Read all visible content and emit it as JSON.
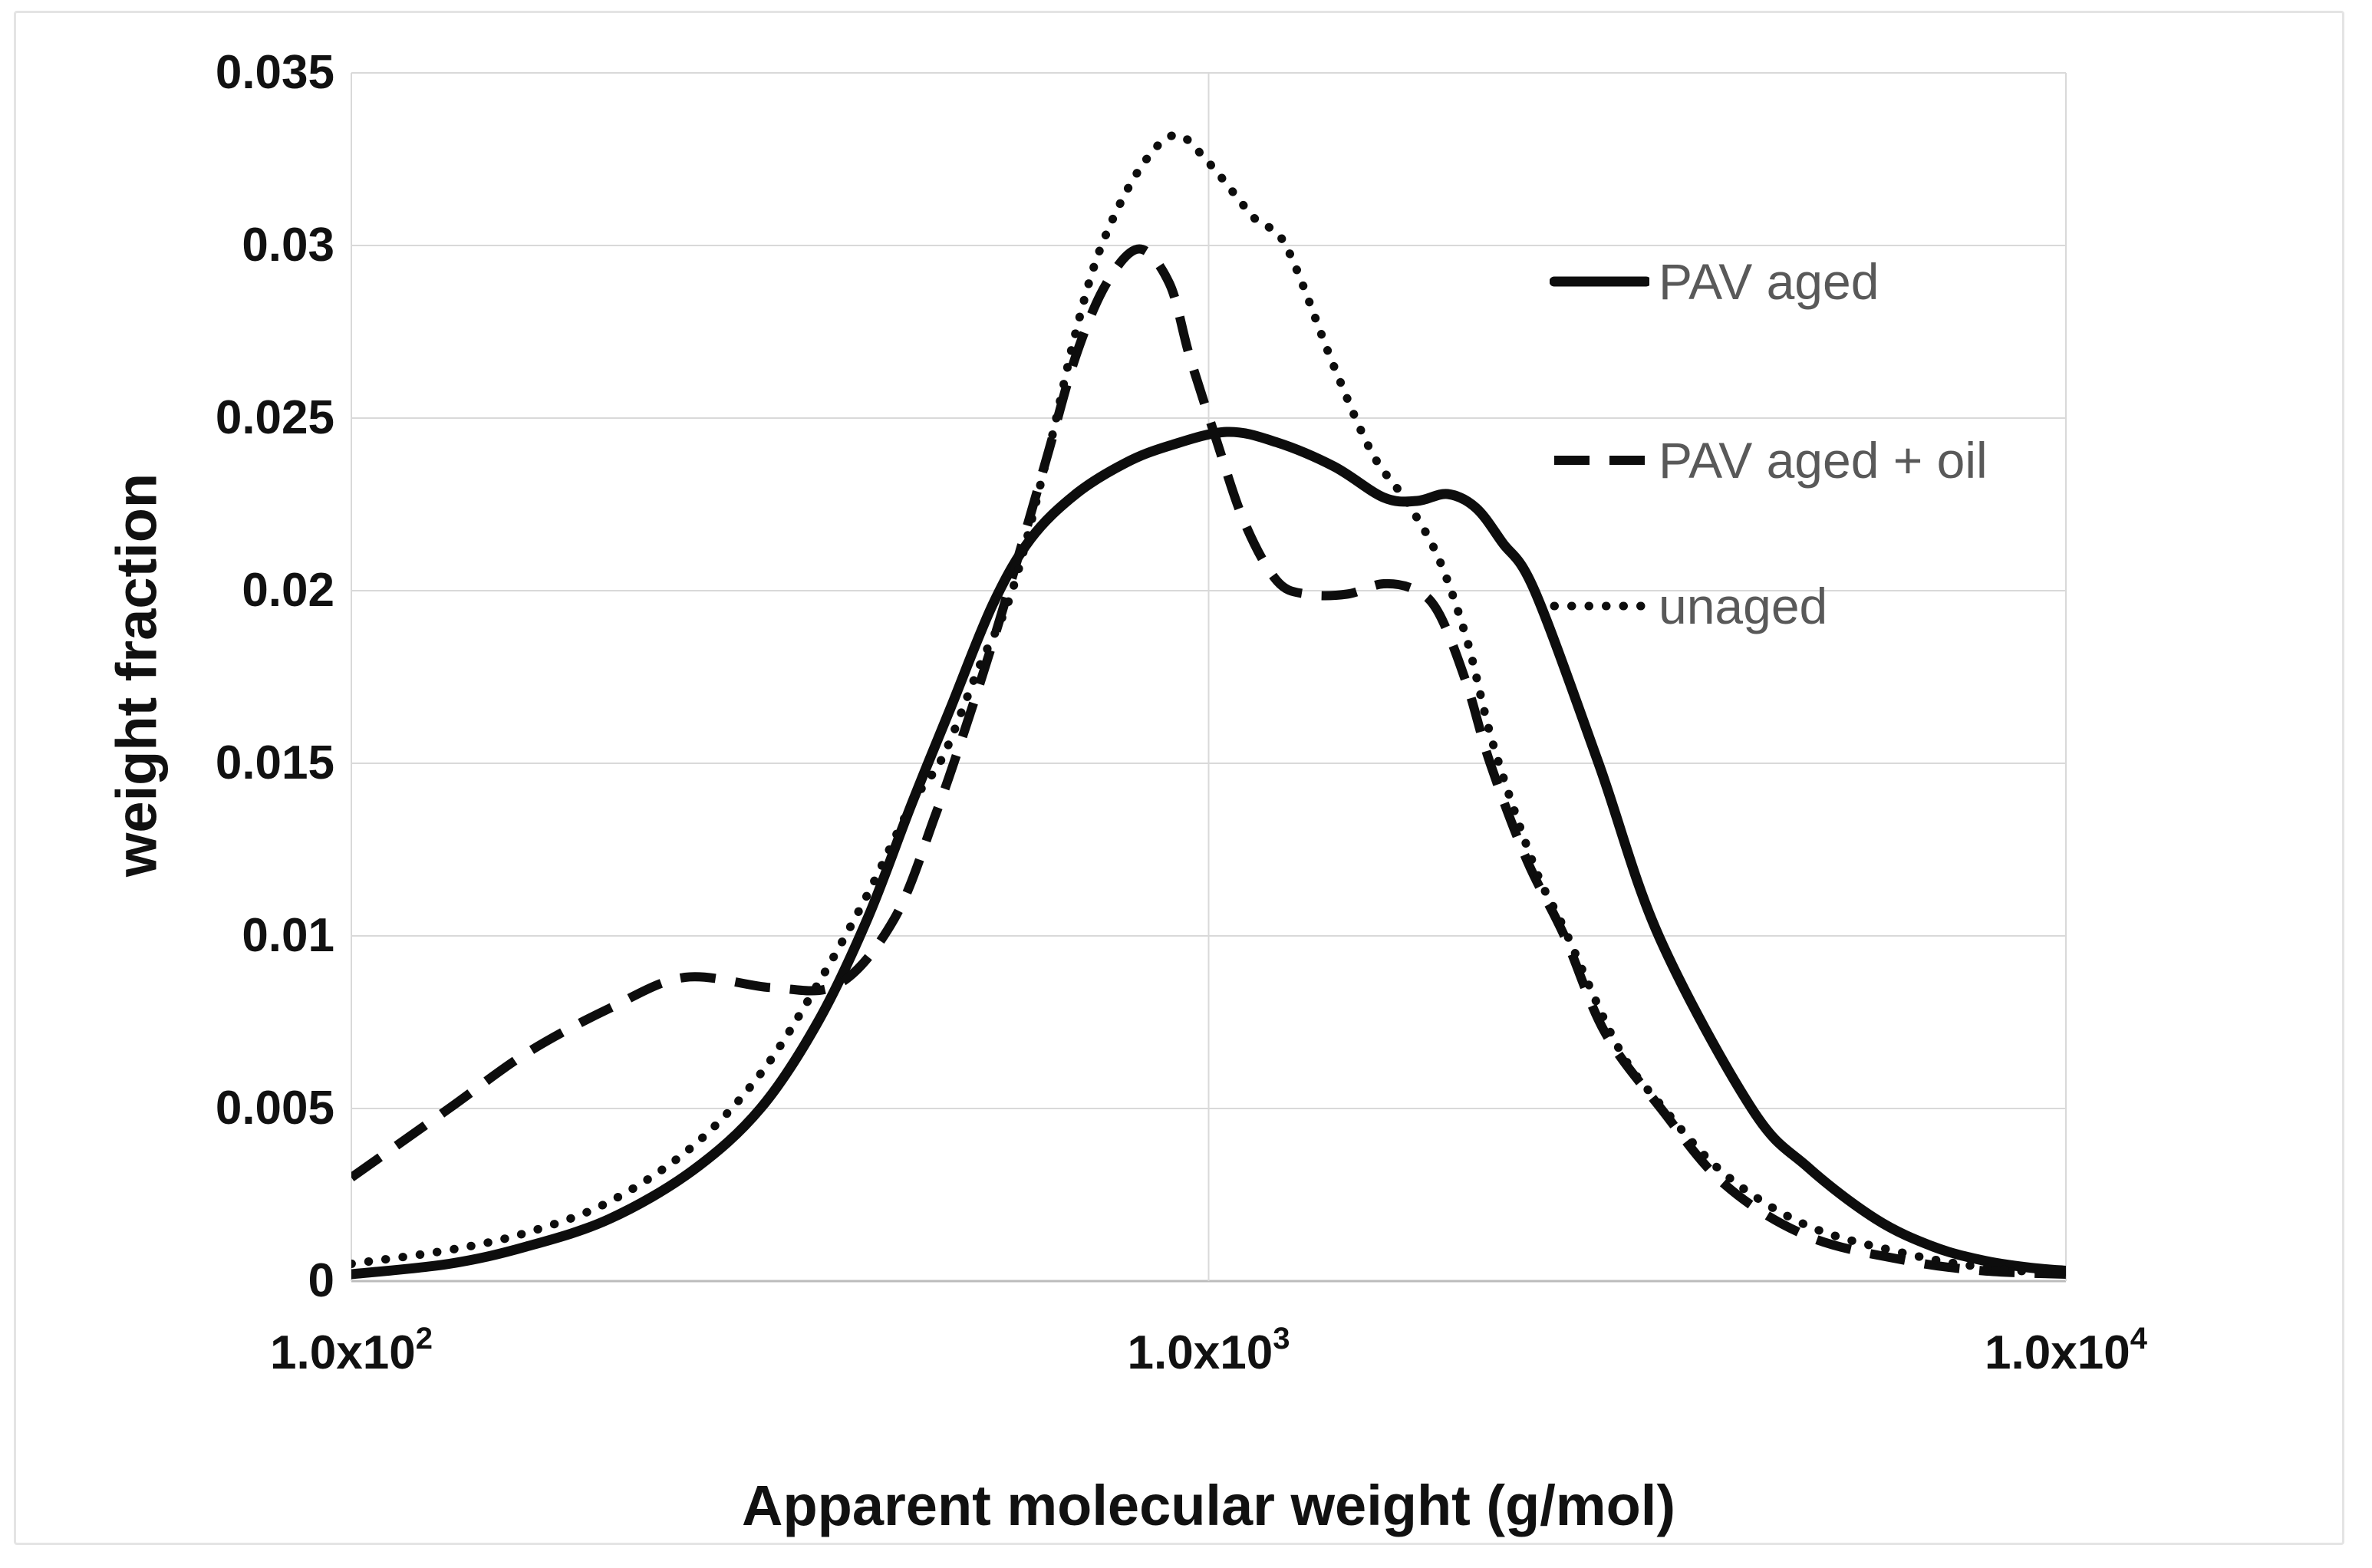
{
  "figure": {
    "background": "#ffffff",
    "border_color": "#e4e4e4"
  },
  "chart_data": {
    "type": "line",
    "title": "",
    "xlabel": "Apparent molecular weight (g/mol)",
    "ylabel": "weight fraction",
    "x_scale": "log",
    "xlim": [
      100,
      10000
    ],
    "ylim": [
      0,
      0.035
    ],
    "grid": true,
    "gridline_color": "#d9d9d9",
    "axis_line_color": "#bcbcbc",
    "line_color": "#0d0d0d",
    "x_ticks": [
      {
        "value": 100,
        "label_base": "1.0x10",
        "label_exp": "2"
      },
      {
        "value": 1000,
        "label_base": "1.0x10",
        "label_exp": "3"
      },
      {
        "value": 10000,
        "label_base": "1.0x10",
        "label_exp": "4"
      }
    ],
    "y_ticks": [
      {
        "value": 0,
        "label": "0"
      },
      {
        "value": 0.005,
        "label": "0.005"
      },
      {
        "value": 0.01,
        "label": "0.01"
      },
      {
        "value": 0.015,
        "label": "0.015"
      },
      {
        "value": 0.02,
        "label": "0.02"
      },
      {
        "value": 0.025,
        "label": "0.025"
      },
      {
        "value": 0.03,
        "label": "0.03"
      },
      {
        "value": 0.035,
        "label": "0.035"
      }
    ],
    "legend": {
      "position": "inside-top-right",
      "text_color": "#595959",
      "entries": [
        "PAV aged",
        "PAV aged + oil",
        "unaged"
      ]
    },
    "series": [
      {
        "name": "PAV aged",
        "line_style": "solid",
        "points": [
          [
            100,
            0.0002
          ],
          [
            130,
            0.0005
          ],
          [
            160,
            0.001
          ],
          [
            200,
            0.0018
          ],
          [
            250,
            0.0032
          ],
          [
            300,
            0.005
          ],
          [
            350,
            0.0075
          ],
          [
            400,
            0.0105
          ],
          [
            450,
            0.0138
          ],
          [
            500,
            0.0166
          ],
          [
            560,
            0.0196
          ],
          [
            620,
            0.0215
          ],
          [
            700,
            0.0228
          ],
          [
            800,
            0.0237
          ],
          [
            900,
            0.0242
          ],
          [
            1050,
            0.0246
          ],
          [
            1200,
            0.0243
          ],
          [
            1400,
            0.0236
          ],
          [
            1600,
            0.0227
          ],
          [
            1750,
            0.0226
          ],
          [
            1900,
            0.0228
          ],
          [
            2050,
            0.0224
          ],
          [
            2200,
            0.0214
          ],
          [
            2400,
            0.02
          ],
          [
            2850,
            0.015
          ],
          [
            3350,
            0.01
          ],
          [
            4300,
            0.005
          ],
          [
            5000,
            0.0033
          ],
          [
            6000,
            0.0018
          ],
          [
            7000,
            0.001
          ],
          [
            8000,
            0.0006
          ],
          [
            9000,
            0.0004
          ],
          [
            10000,
            0.0003
          ]
        ]
      },
      {
        "name": "PAV aged + oil",
        "line_style": "dashed",
        "points": [
          [
            100,
            0.003
          ],
          [
            130,
            0.005
          ],
          [
            160,
            0.0066
          ],
          [
            200,
            0.0079
          ],
          [
            245,
            0.0088
          ],
          [
            310,
            0.0085
          ],
          [
            370,
            0.0086
          ],
          [
            430,
            0.0105
          ],
          [
            480,
            0.0135
          ],
          [
            520,
            0.016
          ],
          [
            560,
            0.0185
          ],
          [
            600,
            0.021
          ],
          [
            650,
            0.024
          ],
          [
            700,
            0.0268
          ],
          [
            760,
            0.0289
          ],
          [
            830,
            0.0299
          ],
          [
            900,
            0.0289
          ],
          [
            950,
            0.0268
          ],
          [
            1020,
            0.0244
          ],
          [
            1100,
            0.022
          ],
          [
            1200,
            0.0203
          ],
          [
            1300,
            0.0199
          ],
          [
            1450,
            0.0199
          ],
          [
            1600,
            0.0202
          ],
          [
            1750,
            0.02
          ],
          [
            1860,
            0.0193
          ],
          [
            2000,
            0.0173
          ],
          [
            2130,
            0.015
          ],
          [
            2350,
            0.0122
          ],
          [
            2600,
            0.01
          ],
          [
            2900,
            0.0072
          ],
          [
            3370,
            0.005
          ],
          [
            4000,
            0.0028
          ],
          [
            5000,
            0.0013
          ],
          [
            6500,
            0.0006
          ],
          [
            8000,
            0.0003
          ],
          [
            10000,
            0.0002
          ]
        ]
      },
      {
        "name": "unaged",
        "line_style": "dotted",
        "points": [
          [
            100,
            0.0005
          ],
          [
            130,
            0.0009
          ],
          [
            160,
            0.0014
          ],
          [
            200,
            0.0023
          ],
          [
            250,
            0.0039
          ],
          [
            300,
            0.006
          ],
          [
            350,
            0.0086
          ],
          [
            400,
            0.0112
          ],
          [
            450,
            0.0138
          ],
          [
            490,
            0.0152
          ],
          [
            540,
            0.0178
          ],
          [
            590,
            0.02
          ],
          [
            650,
            0.024
          ],
          [
            700,
            0.0275
          ],
          [
            750,
            0.03
          ],
          [
            830,
            0.0322
          ],
          [
            914,
            0.0332
          ],
          [
            1000,
            0.0324
          ],
          [
            1130,
            0.0308
          ],
          [
            1230,
            0.03
          ],
          [
            1400,
            0.0265
          ],
          [
            1550,
            0.024
          ],
          [
            1700,
            0.0226
          ],
          [
            1850,
            0.021
          ],
          [
            2000,
            0.0186
          ],
          [
            2150,
            0.0155
          ],
          [
            2400,
            0.012
          ],
          [
            2600,
            0.0102
          ],
          [
            3000,
            0.0068
          ],
          [
            3370,
            0.0051
          ],
          [
            4000,
            0.0031
          ],
          [
            5000,
            0.0016
          ],
          [
            6500,
            0.0008
          ],
          [
            8000,
            0.0004
          ],
          [
            10000,
            0.0002
          ]
        ]
      }
    ]
  }
}
